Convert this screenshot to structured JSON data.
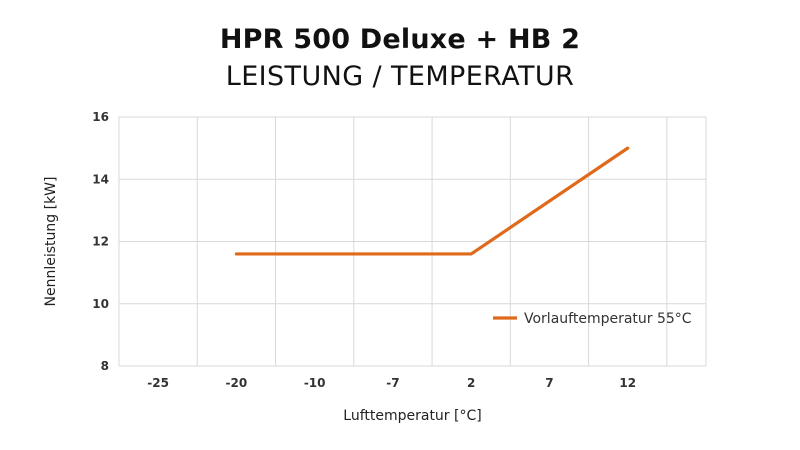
{
  "chart_data": {
    "type": "line",
    "title": "HPR 500 Deluxe + HB 2",
    "subtitle": "LEISTUNG / TEMPERATUR",
    "xlabel": "Lufttemperatur [°C]",
    "ylabel": "Nennleistung [kW]",
    "categories": [
      "-25",
      "-20",
      "-10",
      "-7",
      "2",
      "7",
      "12"
    ],
    "ylim": [
      8,
      16
    ],
    "yticks": [
      8,
      10,
      12,
      14,
      16
    ],
    "grid": true,
    "legend_position": "right",
    "series": [
      {
        "name": "Vorlauftemperatur 55°C",
        "color": "#E06A1B",
        "points": [
          {
            "x": "-20",
            "y": 11.6
          },
          {
            "x": "2",
            "y": 11.6
          },
          {
            "x": "12",
            "y": 15.0
          }
        ]
      }
    ]
  }
}
